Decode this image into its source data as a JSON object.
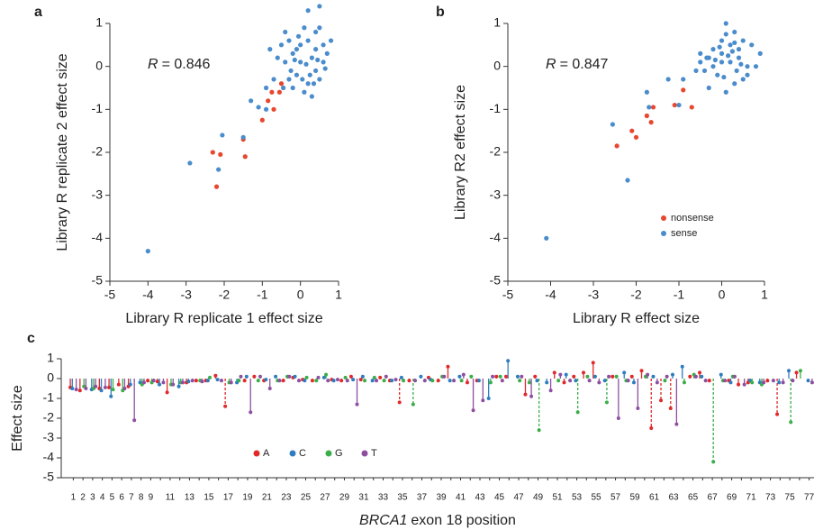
{
  "chart_data": [
    {
      "type": "scatter",
      "panel_label": "a",
      "x_label": "Library R replicate 1 effect size",
      "y_label": "Library R replicate 2 effect size",
      "annotation": {
        "symbol": "R",
        "text": "= 0.846"
      },
      "xlim": [
        -5,
        1
      ],
      "xticks": [
        -5,
        -4,
        -3,
        -2,
        -1,
        0,
        1
      ],
      "ylim": [
        -5,
        1
      ],
      "yticks": [
        -5,
        -4,
        -3,
        -2,
        -1,
        0,
        1
      ],
      "series": [
        {
          "color": "#e8472f",
          "x": [
            -2.3,
            -2.1,
            -2.2,
            -1.5,
            -1.45,
            -1.0,
            -0.7,
            -0.85,
            -0.75,
            -0.55,
            -0.5
          ],
          "values": [
            -2.0,
            -2.05,
            -2.8,
            -1.7,
            -2.1,
            -1.25,
            -1.0,
            -0.8,
            -0.6,
            -0.6,
            -0.4
          ]
        },
        {
          "color": "#4a8ccc",
          "x": [
            -4.0,
            -2.9,
            -2.15,
            -2.05,
            -1.5,
            -1.3,
            -1.1,
            -0.9,
            -0.9,
            -0.7,
            -0.3,
            -0.2,
            0.1,
            0.2,
            0.5,
            0.4,
            0.6,
            0.8,
            0.3,
            0.0,
            -0.1,
            0.2,
            0.4,
            -0.4,
            -0.5,
            -0.6,
            0.1,
            -0.2,
            0.5,
            0.3,
            -0.3,
            0.6,
            0.7,
            -0.8,
            -0.4,
            0.0,
            0.2,
            -0.1,
            0.4,
            0.15,
            -0.25,
            0.05,
            0.5,
            -0.05,
            0.35,
            -0.45,
            0.25,
            0.65,
            -0.15,
            0.45
          ],
          "values": [
            -4.3,
            -2.25,
            -2.4,
            -1.6,
            -1.65,
            -0.8,
            -0.95,
            -1.0,
            -0.5,
            -0.3,
            0.6,
            0.3,
            0.9,
            1.3,
            1.4,
            0.8,
            0.5,
            0.6,
            0.2,
            0.1,
            -0.2,
            -0.4,
            -0.1,
            0.1,
            0.5,
            0.2,
            -0.6,
            -0.5,
            -0.3,
            -0.7,
            -0.3,
            0.1,
            0.3,
            0.4,
            0.8,
            0.5,
            0.6,
            0.4,
            0.4,
            0.05,
            -0.1,
            -0.3,
            0.9,
            0.7,
            -0.4,
            -0.5,
            -0.2,
            -0.05,
            0.15,
            0.15
          ]
        }
      ]
    },
    {
      "type": "scatter",
      "panel_label": "b",
      "x_label": "Library R effect size",
      "y_label": "Library R2 effect size",
      "annotation": {
        "symbol": "R",
        "text": "= 0.847"
      },
      "xlim": [
        -5,
        1
      ],
      "xticks": [
        -5,
        -4,
        -3,
        -2,
        -1,
        0,
        1
      ],
      "ylim": [
        -5,
        1
      ],
      "yticks": [
        -5,
        -4,
        -3,
        -2,
        -1,
        0,
        1
      ],
      "series": [
        {
          "name": "nonsense",
          "color": "#e8472f",
          "x": [
            -2.45,
            -2.1,
            -2.0,
            -1.75,
            -1.6,
            -1.1,
            -0.9,
            -0.7,
            -1.65
          ],
          "values": [
            -1.85,
            -1.5,
            -1.65,
            -1.15,
            -0.95,
            -0.9,
            -0.55,
            -0.95,
            -1.3
          ]
        },
        {
          "name": "sense",
          "color": "#4a8ccc",
          "x": [
            -4.1,
            -2.2,
            -2.55,
            -1.75,
            -1.7,
            -1.25,
            -1.0,
            -0.9,
            -0.6,
            -0.5,
            -0.3,
            0.0,
            0.1,
            0.3,
            0.5,
            0.7,
            0.9,
            -0.2,
            0.0,
            0.2,
            0.4,
            -0.4,
            -0.1,
            0.6,
            0.3,
            -0.3,
            0.1,
            0.5,
            0.2,
            -0.2,
            0.0,
            0.4,
            0.8,
            -0.5,
            0.15,
            0.35,
            -0.05,
            0.25,
            0.05,
            0.45,
            -0.15,
            0.6,
            0.1,
            -0.35,
            0.3
          ],
          "values": [
            -4.0,
            -2.65,
            -1.35,
            -0.6,
            -0.95,
            -0.3,
            -0.9,
            -0.3,
            -0.1,
            0.1,
            0.2,
            0.6,
            1.0,
            0.8,
            0.6,
            0.5,
            0.3,
            0.4,
            0.3,
            0.1,
            0.2,
            -0.1,
            -0.2,
            0.0,
            -0.4,
            -0.5,
            -0.6,
            -0.3,
            0.5,
            0.0,
            0.1,
            0.4,
            0.0,
            0.3,
            0.25,
            -0.1,
            0.45,
            0.35,
            -0.25,
            0.05,
            0.15,
            -0.2,
            0.75,
            0.2,
            0.55
          ]
        }
      ],
      "legend": "lower right"
    },
    {
      "type": "lollipop",
      "panel_label": "c",
      "x_label_gene": "BRCA1",
      "x_label": "exon 18 position",
      "y_label": "Effect size",
      "ylim": [
        -5,
        1
      ],
      "yticks": [
        -5,
        -4,
        -3,
        -2,
        -1,
        0,
        1
      ],
      "categories": [
        1,
        2,
        3,
        4,
        5,
        6,
        7,
        8,
        9,
        null,
        11,
        null,
        13,
        null,
        15,
        null,
        17,
        null,
        19,
        null,
        21,
        null,
        23,
        null,
        25,
        null,
        27,
        null,
        29,
        null,
        31,
        null,
        33,
        null,
        35,
        null,
        37,
        null,
        39,
        null,
        41,
        null,
        43,
        null,
        45,
        null,
        47,
        null,
        49,
        null,
        51,
        null,
        53,
        null,
        55,
        null,
        57,
        null,
        59,
        null,
        61,
        null,
        63,
        null,
        65,
        null,
        67,
        null,
        69,
        null,
        71,
        null,
        73,
        null,
        75,
        null,
        77
      ],
      "series": [
        {
          "name": "A",
          "color": "#e0292b",
          "values": [
            -0.45,
            -0.6,
            null,
            -0.5,
            -0.45,
            -0.3,
            -0.4,
            null,
            -0.1,
            -0.15,
            -0.7,
            null,
            -0.2,
            -0.1,
            -0.1,
            0.15,
            -1.4,
            null,
            -0.1,
            0.1,
            -0.1,
            null,
            -0.1,
            0.05,
            -0.05,
            -0.1,
            null,
            -0.05,
            -0.1,
            0.1,
            -0.05,
            null,
            0.05,
            -0.1,
            -1.2,
            -0.1,
            null,
            0.05,
            -0.1,
            0.6,
            null,
            -0.2,
            -0.1,
            null,
            0.1,
            0.1,
            null,
            -0.8,
            0.1,
            null,
            0.3,
            -0.2,
            0.1,
            0.3,
            0.8,
            null,
            0.1,
            null,
            0.1,
            0.4,
            -2.5,
            -1.1,
            -1.5,
            null,
            0.1,
            0.3,
            -0.1,
            null,
            -0.1,
            -0.3,
            -0.2,
            null,
            -0.1,
            -1.8,
            null,
            0.3,
            null
          ]
        },
        {
          "name": "C",
          "color": "#2e7dbf",
          "values": [
            -0.5,
            null,
            -0.55,
            -0.6,
            -0.9,
            null,
            -0.3,
            -0.2,
            null,
            -0.3,
            null,
            -0.4,
            -0.15,
            null,
            -0.1,
            -0.05,
            null,
            -0.2,
            0.1,
            null,
            -0.05,
            0.1,
            null,
            0.1,
            -0.1,
            null,
            0.05,
            -0.1,
            null,
            -0.05,
            0.1,
            -0.1,
            null,
            -0.1,
            0.05,
            null,
            0.1,
            -0.05,
            null,
            -0.1,
            0.1,
            null,
            -0.1,
            -1.0,
            null,
            0.9,
            0.1,
            null,
            -0.1,
            -0.2,
            null,
            0.2,
            -0.1,
            null,
            0.1,
            -0.1,
            null,
            0.3,
            -0.2,
            null,
            0.1,
            null,
            0.2,
            0.6,
            null,
            0.1,
            null,
            0.2,
            -0.2,
            null,
            -0.1,
            -0.2,
            null,
            -0.2,
            0.4,
            null,
            -0.1
          ]
        },
        {
          "name": "G",
          "color": "#3bae49",
          "values": [
            null,
            -0.4,
            -0.5,
            null,
            -0.55,
            -0.6,
            null,
            -0.3,
            -0.2,
            null,
            -0.3,
            -0.2,
            null,
            -0.1,
            0.05,
            null,
            -0.2,
            -0.1,
            null,
            -0.1,
            null,
            -0.1,
            0.1,
            null,
            0.05,
            -0.1,
            0.2,
            null,
            0.05,
            null,
            -0.1,
            0.05,
            -0.1,
            null,
            -0.1,
            -1.3,
            null,
            -0.1,
            0.1,
            null,
            -0.1,
            0.1,
            null,
            -0.2,
            0.1,
            null,
            -0.1,
            -0.2,
            -2.6,
            null,
            -0.1,
            null,
            -1.7,
            0.1,
            null,
            -1.2,
            0.1,
            -0.1,
            null,
            0.1,
            null,
            -0.1,
            null,
            -0.2,
            0.2,
            null,
            -4.2,
            -0.1,
            0.1,
            null,
            -0.2,
            -0.3,
            null,
            null,
            -2.2,
            0.4,
            null
          ]
        },
        {
          "name": "T",
          "color": "#8e4fa0",
          "values": [
            -0.55,
            -0.5,
            -0.4,
            -0.45,
            null,
            -0.5,
            -2.1,
            -0.2,
            -0.1,
            -0.2,
            -0.3,
            -0.2,
            -0.1,
            -0.15,
            null,
            -0.1,
            -0.2,
            0.1,
            -1.7,
            0.1,
            -0.5,
            -0.1,
            0.1,
            -0.1,
            null,
            0.05,
            -0.1,
            -0.05,
            -0.1,
            -1.3,
            null,
            -0.1,
            0.1,
            -0.05,
            null,
            -0.1,
            -0.1,
            null,
            0.1,
            -0.1,
            0.2,
            -1.6,
            -1.1,
            0.1,
            -0.1,
            null,
            0.1,
            -0.9,
            null,
            -0.6,
            0.2,
            -0.1,
            null,
            -0.1,
            -0.2,
            0.1,
            -2.0,
            -0.1,
            -1.5,
            0.2,
            -0.2,
            0.1,
            -2.3,
            null,
            0.1,
            -0.1,
            null,
            -0.1,
            0.1,
            -0.3,
            null,
            -0.2,
            -0.1,
            -0.2,
            -0.1,
            null,
            -0.2
          ]
        }
      ]
    }
  ]
}
